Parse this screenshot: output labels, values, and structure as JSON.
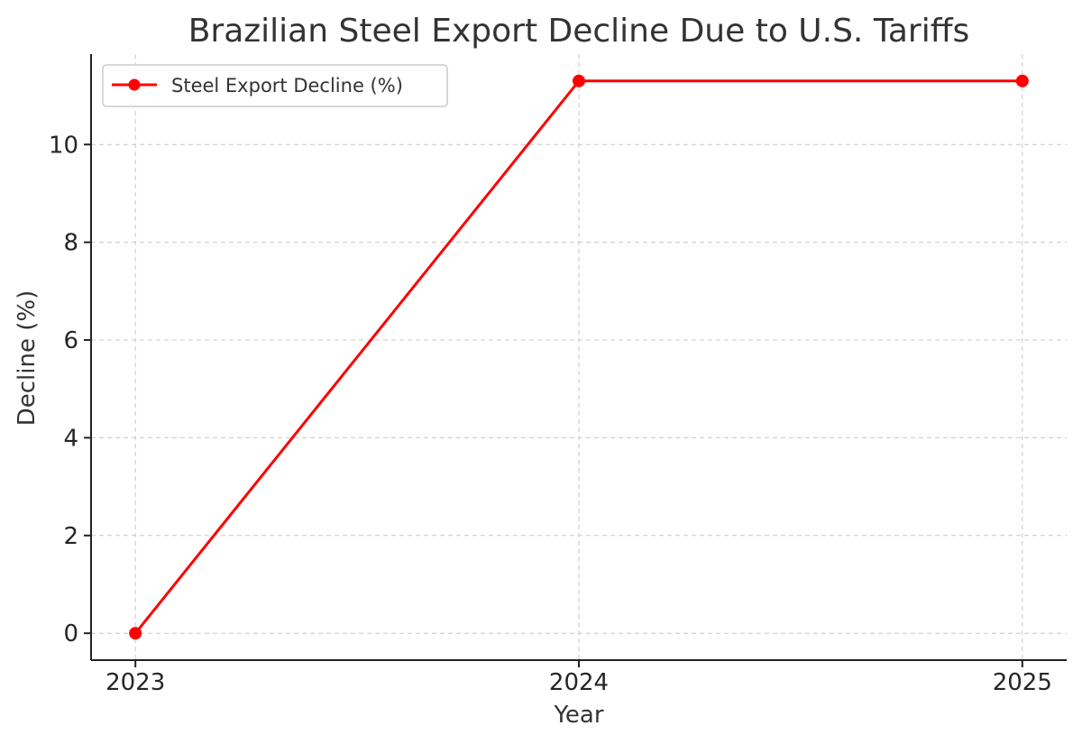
{
  "chart_data": {
    "type": "line",
    "title": "Brazilian Steel Export Decline Due to U.S. Tariffs",
    "xlabel": "Year",
    "ylabel": "Decline (%)",
    "categories": [
      "2023",
      "2024",
      "2025"
    ],
    "series": [
      {
        "name": "Steel Export Decline (%)",
        "values": [
          0,
          11.3,
          11.3
        ],
        "color": "#ff0000",
        "marker": "circle"
      }
    ],
    "ylim": [
      -0.55,
      11.85
    ],
    "yticks": [
      0,
      2,
      4,
      6,
      8,
      10
    ],
    "xlim": [
      -0.1,
      2.1
    ],
    "grid": true,
    "legend_position": "top-left"
  }
}
